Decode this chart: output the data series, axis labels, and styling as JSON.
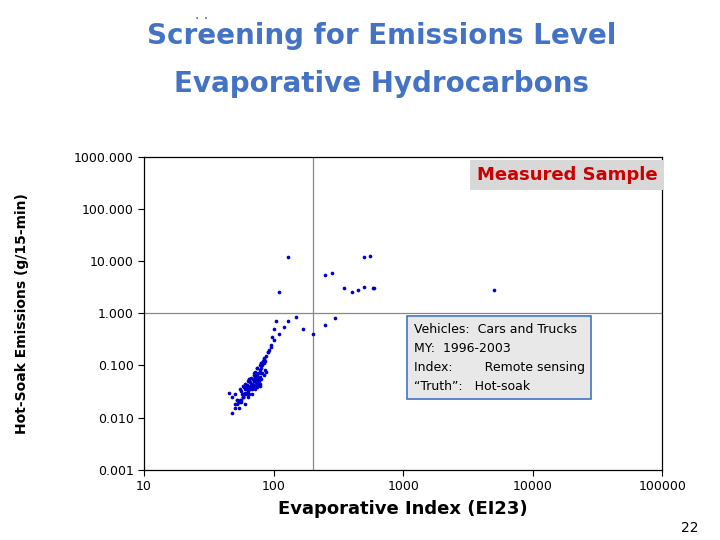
{
  "title_line1": "Screening for Emissions Level",
  "title_line2": "Evaporative Hydrocarbons",
  "title_color": "#4472C4",
  "xlabel": "Evaporative Index (EI23)",
  "ylabel": "Hot-Soak Emissions (g/15-min)",
  "dot_color": "#0000CC",
  "xlim": [
    10,
    100000
  ],
  "ylim": [
    0.001,
    1000
  ],
  "measured_sample_text": "Measured Sample",
  "measured_sample_color": "#CC0000",
  "measured_sample_bg": "#D8D8D8",
  "box_line1": "Vehicles:  Cars and Trucks",
  "box_line2": "MY:  1996-2003",
  "box_line3": "Index:        Remote sensing",
  "box_line4": "“Truth”:   Hot-soak",
  "box_bg": "#E8E8E8",
  "box_edge": "#4472C4",
  "page_number": "22",
  "vline_x": 200,
  "hline_y": 1.0,
  "cluster_x": [
    45,
    48,
    50,
    52,
    54,
    55,
    56,
    57,
    58,
    58,
    59,
    60,
    60,
    61,
    62,
    62,
    63,
    63,
    64,
    65,
    65,
    66,
    67,
    68,
    68,
    69,
    70,
    70,
    71,
    72,
    72,
    73,
    74,
    75,
    75,
    76,
    77,
    78,
    79,
    80,
    50,
    52,
    54,
    56,
    58,
    60,
    62,
    64,
    66,
    68,
    70,
    72,
    74,
    76,
    78,
    80,
    82,
    84,
    86,
    88,
    55,
    58,
    60,
    62,
    65,
    67,
    70,
    72,
    75,
    78,
    80,
    83,
    85,
    88,
    90,
    92,
    95,
    98,
    100,
    105,
    48,
    50,
    52,
    54,
    56,
    58,
    60,
    62,
    64,
    66,
    68,
    70,
    72,
    74,
    76,
    78,
    80,
    82,
    84,
    86,
    60,
    65,
    70,
    75,
    80,
    85,
    90,
    95,
    100,
    110,
    120,
    130,
    150,
    170,
    200,
    250,
    300
  ],
  "cluster_y": [
    0.03,
    0.025,
    0.028,
    0.022,
    0.02,
    0.035,
    0.032,
    0.028,
    0.025,
    0.04,
    0.038,
    0.03,
    0.045,
    0.042,
    0.035,
    0.028,
    0.05,
    0.038,
    0.032,
    0.028,
    0.055,
    0.048,
    0.042,
    0.038,
    0.035,
    0.055,
    0.05,
    0.042,
    0.038,
    0.06,
    0.055,
    0.048,
    0.042,
    0.038,
    0.065,
    0.055,
    0.05,
    0.045,
    0.04,
    0.07,
    0.018,
    0.022,
    0.015,
    0.02,
    0.025,
    0.018,
    0.03,
    0.025,
    0.035,
    0.028,
    0.04,
    0.035,
    0.05,
    0.045,
    0.06,
    0.055,
    0.07,
    0.065,
    0.08,
    0.075,
    0.022,
    0.028,
    0.035,
    0.042,
    0.05,
    0.058,
    0.065,
    0.075,
    0.088,
    0.1,
    0.11,
    0.12,
    0.13,
    0.15,
    0.18,
    0.2,
    0.25,
    0.35,
    0.5,
    0.7,
    0.012,
    0.015,
    0.018,
    0.02,
    0.022,
    0.025,
    0.028,
    0.03,
    0.035,
    0.04,
    0.045,
    0.05,
    0.055,
    0.06,
    0.07,
    0.08,
    0.09,
    0.1,
    0.11,
    0.12,
    0.04,
    0.055,
    0.07,
    0.09,
    0.11,
    0.14,
    0.18,
    0.23,
    0.3,
    0.4,
    0.55,
    0.7,
    0.85,
    0.5,
    0.4,
    0.6,
    0.8
  ],
  "high_x": [
    130,
    110,
    250,
    280,
    500,
    550,
    600,
    580,
    350,
    400,
    450,
    500,
    5000
  ],
  "high_y": [
    12.0,
    2.5,
    5.5,
    6.0,
    12.0,
    12.5,
    3.0,
    3.0,
    3.0,
    2.5,
    2.8,
    3.2,
    2.8
  ]
}
